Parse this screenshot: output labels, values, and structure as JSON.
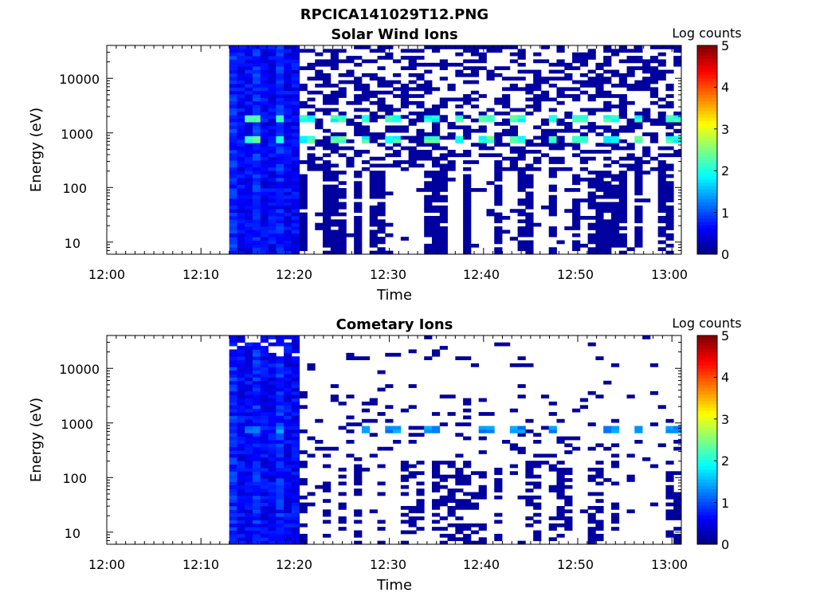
{
  "figure": {
    "main_title": "RPCICA141029T12.PNG",
    "x_tick_labels": [
      "12:00",
      "12:10",
      "12:20",
      "12:30",
      "12:40",
      "12:50",
      "13:00"
    ]
  },
  "panels": [
    {
      "title": "Solar Wind Ions",
      "xlabel": "Time",
      "ylabel": "Energy (eV)",
      "y_tick_labels": [
        "10",
        "100",
        "1000",
        "10000"
      ],
      "colorbar_label": "Log counts",
      "colorbar_tick_labels": [
        "0",
        "1",
        "2",
        "3",
        "4",
        "5"
      ]
    },
    {
      "title": "Cometary Ions",
      "xlabel": "Time",
      "ylabel": "Energy (eV)",
      "y_tick_labels": [
        "10",
        "100",
        "1000",
        "10000"
      ],
      "colorbar_label": "Log counts",
      "colorbar_tick_labels": [
        "0",
        "1",
        "2",
        "3",
        "4",
        "5"
      ]
    }
  ],
  "chart_data": [
    {
      "type": "heatmap",
      "title": "Solar Wind Ions",
      "xlabel": "Time",
      "ylabel": "Energy (eV)",
      "x_range": [
        "12:00",
        "13:01"
      ],
      "y_range_eV": [
        6,
        40000
      ],
      "y_scale": "log",
      "colorbar": {
        "label": "Log counts",
        "range": [
          0,
          5
        ],
        "colormap": "jet"
      },
      "data_start": "12:13",
      "dense_block": [
        "12:13",
        "12:20"
      ],
      "peak_energies_eV": [
        750,
        1800
      ],
      "peak_log_counts": 2.2,
      "peak_times": [
        "12:15",
        "12:18",
        "12:21",
        "12:24",
        "12:27",
        "12:30",
        "12:34",
        "12:37",
        "12:40",
        "12:43",
        "12:47",
        "12:50",
        "12:53",
        "12:56",
        "13:00"
      ]
    },
    {
      "type": "heatmap",
      "title": "Cometary Ions",
      "xlabel": "Time",
      "ylabel": "Energy (eV)",
      "x_range": [
        "12:00",
        "13:01"
      ],
      "y_range_eV": [
        6,
        40000
      ],
      "y_scale": "log",
      "colorbar": {
        "label": "Log counts",
        "range": [
          0,
          5
        ],
        "colormap": "jet"
      },
      "data_start": "12:13",
      "dense_block": [
        "12:13",
        "12:20"
      ],
      "peak_energies_eV": [
        750
      ],
      "peak_log_counts": 1.4,
      "peak_times": [
        "12:15",
        "12:18",
        "12:27",
        "12:30",
        "12:34",
        "12:40",
        "12:43",
        "12:47",
        "12:53",
        "12:56",
        "13:00"
      ]
    }
  ]
}
